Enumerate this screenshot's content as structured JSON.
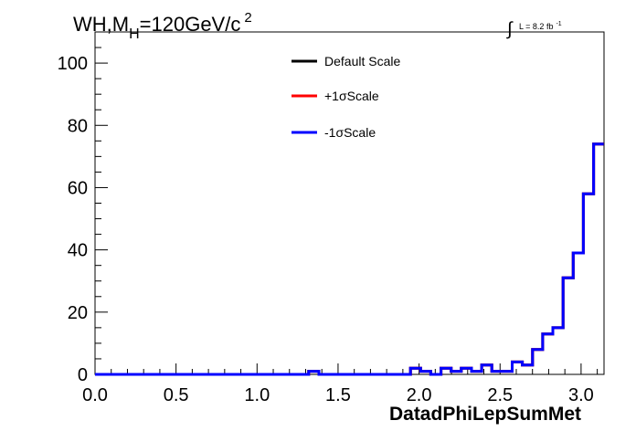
{
  "chart_data": {
    "type": "line",
    "title_main": "WH,M",
    "title_sub": "H",
    "title_rest": "=120GeV/c",
    "title_sup": "2",
    "lumi_symbol": "∫",
    "lumi_text": "L = 8.2 fb",
    "lumi_sup": "-1",
    "xlabel": "DatadPhiLepSumMet",
    "ylabel": "",
    "xlim": [
      0,
      3.1416
    ],
    "ylim": [
      0,
      110
    ],
    "x_ticks": [
      "0.0",
      "0.5",
      "1.0",
      "1.5",
      "2.0",
      "2.5",
      "3.0"
    ],
    "x_tick_values": [
      0,
      0.5,
      1.0,
      1.5,
      2.0,
      2.5,
      3.0
    ],
    "y_ticks": [
      "0",
      "20",
      "40",
      "60",
      "80",
      "100"
    ],
    "y_tick_values": [
      0,
      20,
      40,
      60,
      80,
      100
    ],
    "legend_position": "top-center",
    "bin_width": 0.0628,
    "series": [
      {
        "name": "Default Scale",
        "color": "#000000",
        "values": [
          0,
          0,
          0,
          0,
          0,
          0,
          0,
          0,
          0,
          0,
          0,
          0,
          0,
          0,
          0,
          0,
          0,
          0,
          0,
          0,
          0,
          1,
          0,
          0,
          0,
          0,
          0,
          0,
          0,
          0,
          0,
          2,
          1,
          0,
          2,
          1,
          2,
          1,
          3,
          1,
          1,
          4,
          3,
          8,
          13,
          15,
          31,
          39,
          58,
          74
        ]
      },
      {
        "name": "+1σScale",
        "color": "#ff0000",
        "values": [
          0,
          0,
          0,
          0,
          0,
          0,
          0,
          0,
          0,
          0,
          0,
          0,
          0,
          0,
          0,
          0,
          0,
          0,
          0,
          0,
          0,
          1,
          0,
          0,
          0,
          0,
          0,
          0,
          0,
          0,
          0,
          2,
          1,
          0,
          2,
          1,
          2,
          1,
          3,
          1,
          1,
          4,
          3,
          8,
          13,
          15,
          31,
          39,
          58,
          74
        ]
      },
      {
        "name": "-1σScale",
        "color": "#0000ff",
        "values": [
          0,
          0,
          0,
          0,
          0,
          0,
          0,
          0,
          0,
          0,
          0,
          0,
          0,
          0,
          0,
          0,
          0,
          0,
          0,
          0,
          0,
          1,
          0,
          0,
          0,
          0,
          0,
          0,
          0,
          0,
          0,
          2,
          1,
          0,
          2,
          1,
          2,
          1,
          3,
          1,
          1,
          4,
          3,
          8,
          13,
          15,
          31,
          39,
          58,
          74
        ]
      }
    ]
  }
}
